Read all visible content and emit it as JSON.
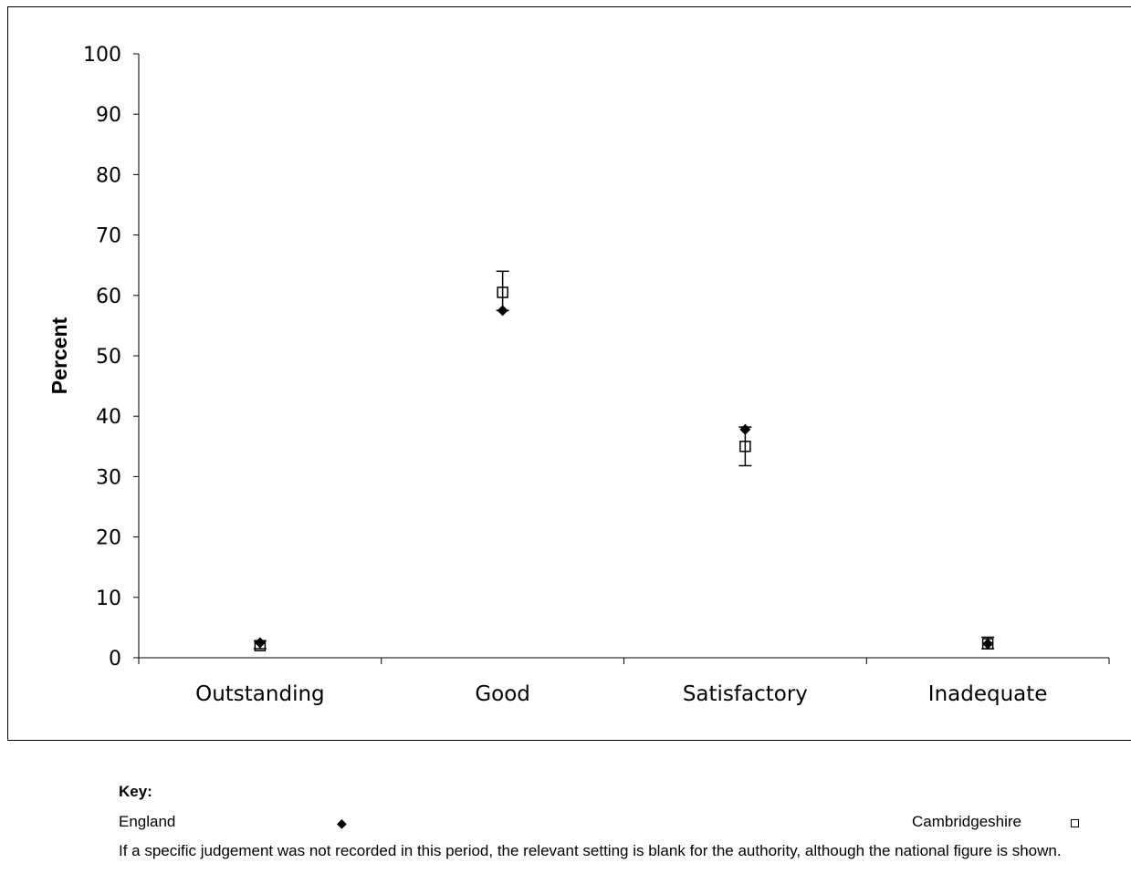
{
  "chart_data": {
    "type": "scatter",
    "categories": [
      "Outstanding",
      "Good",
      "Satisfactory",
      "Inadequate"
    ],
    "ylabel": "Percent",
    "ylim": [
      0,
      100
    ],
    "yticks": [
      0,
      10,
      20,
      30,
      40,
      50,
      60,
      70,
      80,
      90,
      100
    ],
    "series": [
      {
        "name": "England",
        "marker": "diamond-filled",
        "color": "#000000",
        "values": [
          2.5,
          57.5,
          37.8,
          2.3
        ]
      },
      {
        "name": "Cambridgeshire",
        "marker": "square-open",
        "color": "#000000",
        "values": [
          2.0,
          60.5,
          35.0,
          2.3
        ],
        "error_low": [
          1.5,
          57.5,
          31.8,
          1.5
        ],
        "error_high": [
          2.8,
          64.0,
          38.2,
          3.4
        ]
      }
    ],
    "grid": false,
    "legend": "bottom"
  },
  "key": {
    "title": "Key:",
    "england_label": "England",
    "cambridgeshire_label": "Cambridgeshire",
    "note": "If a specific judgement was not recorded in this period, the relevant setting is blank for the authority, although the national figure is shown."
  }
}
